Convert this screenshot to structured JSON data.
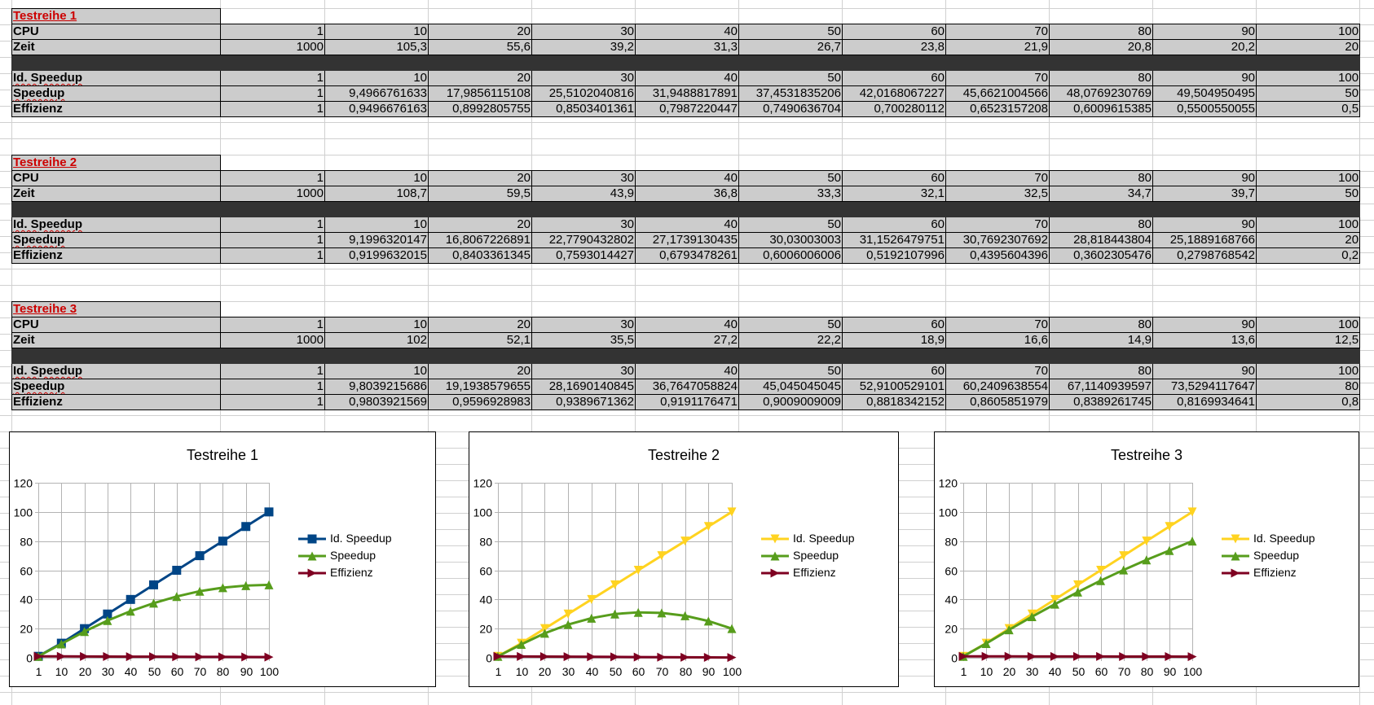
{
  "tables": [
    {
      "title": "Testreihe 1",
      "rows": [
        {
          "label": "CPU",
          "values": [
            "1",
            "10",
            "20",
            "30",
            "40",
            "50",
            "60",
            "70",
            "80",
            "90",
            "100"
          ]
        },
        {
          "label": "Zeit",
          "values": [
            "1000",
            "105,3",
            "55,6",
            "39,2",
            "31,3",
            "26,7",
            "23,8",
            "21,9",
            "20,8",
            "20,2",
            "20"
          ]
        },
        {
          "label": "Id. Speedup",
          "values": [
            "1",
            "10",
            "20",
            "30",
            "40",
            "50",
            "60",
            "70",
            "80",
            "90",
            "100"
          ]
        },
        {
          "label": "Speedup",
          "values": [
            "1",
            "9,4966761633",
            "17,9856115108",
            "25,5102040816",
            "31,9488817891",
            "37,4531835206",
            "42,0168067227",
            "45,6621004566",
            "48,0769230769",
            "49,504950495",
            "50"
          ]
        },
        {
          "label": "Effizienz",
          "values": [
            "1",
            "0,9496676163",
            "0,8992805755",
            "0,8503401361",
            "0,7987220447",
            "0,7490636704",
            "0,700280112",
            "0,6523157208",
            "0,6009615385",
            "0,5500550055",
            "0,5"
          ]
        }
      ]
    },
    {
      "title": "Testreihe 2",
      "rows": [
        {
          "label": "CPU",
          "values": [
            "1",
            "10",
            "20",
            "30",
            "40",
            "50",
            "60",
            "70",
            "80",
            "90",
            "100"
          ]
        },
        {
          "label": "Zeit",
          "values": [
            "1000",
            "108,7",
            "59,5",
            "43,9",
            "36,8",
            "33,3",
            "32,1",
            "32,5",
            "34,7",
            "39,7",
            "50"
          ]
        },
        {
          "label": "Id. Speedup",
          "values": [
            "1",
            "10",
            "20",
            "30",
            "40",
            "50",
            "60",
            "70",
            "80",
            "90",
            "100"
          ]
        },
        {
          "label": "Speedup",
          "values": [
            "1",
            "9,1996320147",
            "16,8067226891",
            "22,7790432802",
            "27,1739130435",
            "30,03003003",
            "31,1526479751",
            "30,7692307692",
            "28,818443804",
            "25,1889168766",
            "20"
          ]
        },
        {
          "label": "Effizienz",
          "values": [
            "1",
            "0,9199632015",
            "0,8403361345",
            "0,7593014427",
            "0,6793478261",
            "0,6006006006",
            "0,5192107996",
            "0,4395604396",
            "0,3602305476",
            "0,2798768542",
            "0,2"
          ]
        }
      ]
    },
    {
      "title": "Testreihe 3",
      "rows": [
        {
          "label": "CPU",
          "values": [
            "1",
            "10",
            "20",
            "30",
            "40",
            "50",
            "60",
            "70",
            "80",
            "90",
            "100"
          ]
        },
        {
          "label": "Zeit",
          "values": [
            "1000",
            "102",
            "52,1",
            "35,5",
            "27,2",
            "22,2",
            "18,9",
            "16,6",
            "14,9",
            "13,6",
            "12,5"
          ]
        },
        {
          "label": "Id. Speedup",
          "values": [
            "1",
            "10",
            "20",
            "30",
            "40",
            "50",
            "60",
            "70",
            "80",
            "90",
            "100"
          ]
        },
        {
          "label": "Speedup",
          "values": [
            "1",
            "9,8039215686",
            "19,1938579655",
            "28,1690140845",
            "36,7647058824",
            "45,045045045",
            "52,9100529101",
            "60,2409638554",
            "67,1140939597",
            "73,5294117647",
            "80"
          ]
        },
        {
          "label": "Effizienz",
          "values": [
            "1",
            "0,9803921569",
            "0,9596928983",
            "0,9389671362",
            "0,9191176471",
            "0,9009009009",
            "0,8818342152",
            "0,8605851979",
            "0,8389261745",
            "0,8169934641",
            "0,8"
          ]
        }
      ]
    }
  ],
  "chart_data": [
    {
      "type": "line",
      "title": "Testreihe 1",
      "categories": [
        "1",
        "10",
        "20",
        "30",
        "40",
        "50",
        "60",
        "70",
        "80",
        "90",
        "100"
      ],
      "ylim": [
        0,
        120
      ],
      "yticks": [
        0,
        20,
        40,
        60,
        80,
        100,
        120
      ],
      "grid": true,
      "legend_position": "right",
      "series": [
        {
          "name": "Id. Speedup",
          "color": "#004586",
          "marker": "square",
          "values": [
            1,
            10,
            20,
            30,
            40,
            50,
            60,
            70,
            80,
            90,
            100
          ]
        },
        {
          "name": "Speedup",
          "color": "#579d1c",
          "marker": "triangle-up",
          "values": [
            1,
            9.5,
            17.99,
            25.51,
            31.95,
            37.45,
            42.02,
            45.66,
            48.08,
            49.5,
            50
          ]
        },
        {
          "name": "Effizienz",
          "color": "#7e0021",
          "marker": "triangle-right",
          "values": [
            1,
            0.95,
            0.9,
            0.85,
            0.8,
            0.75,
            0.7,
            0.65,
            0.6,
            0.55,
            0.5
          ]
        }
      ]
    },
    {
      "type": "line",
      "title": "Testreihe 2",
      "categories": [
        "1",
        "10",
        "20",
        "30",
        "40",
        "50",
        "60",
        "70",
        "80",
        "90",
        "100"
      ],
      "ylim": [
        0,
        120
      ],
      "yticks": [
        0,
        20,
        40,
        60,
        80,
        100,
        120
      ],
      "grid": true,
      "legend_position": "right",
      "series": [
        {
          "name": "Id. Speedup",
          "color": "#ffd320",
          "marker": "triangle-down",
          "values": [
            1,
            10,
            20,
            30,
            40,
            50,
            60,
            70,
            80,
            90,
            100
          ]
        },
        {
          "name": "Speedup",
          "color": "#579d1c",
          "marker": "triangle-up",
          "values": [
            1,
            9.2,
            16.81,
            22.78,
            27.17,
            30.03,
            31.15,
            30.77,
            28.82,
            25.19,
            20
          ]
        },
        {
          "name": "Effizienz",
          "color": "#7e0021",
          "marker": "triangle-right",
          "values": [
            1,
            0.92,
            0.84,
            0.76,
            0.68,
            0.6,
            0.52,
            0.44,
            0.36,
            0.28,
            0.2
          ]
        }
      ]
    },
    {
      "type": "line",
      "title": "Testreihe 3",
      "categories": [
        "1",
        "10",
        "20",
        "30",
        "40",
        "50",
        "60",
        "70",
        "80",
        "90",
        "100"
      ],
      "ylim": [
        0,
        120
      ],
      "yticks": [
        0,
        20,
        40,
        60,
        80,
        100,
        120
      ],
      "grid": true,
      "legend_position": "right",
      "series": [
        {
          "name": "Id. Speedup",
          "color": "#ffd320",
          "marker": "triangle-down",
          "values": [
            1,
            10,
            20,
            30,
            40,
            50,
            60,
            70,
            80,
            90,
            100
          ]
        },
        {
          "name": "Speedup",
          "color": "#579d1c",
          "marker": "triangle-up",
          "values": [
            1,
            9.8,
            19.19,
            28.17,
            36.76,
            45.05,
            52.91,
            60.24,
            67.11,
            73.53,
            80
          ]
        },
        {
          "name": "Effizienz",
          "color": "#7e0021",
          "marker": "triangle-right",
          "values": [
            1,
            0.98,
            0.96,
            0.94,
            0.92,
            0.9,
            0.88,
            0.86,
            0.84,
            0.82,
            0.8
          ]
        }
      ]
    }
  ]
}
